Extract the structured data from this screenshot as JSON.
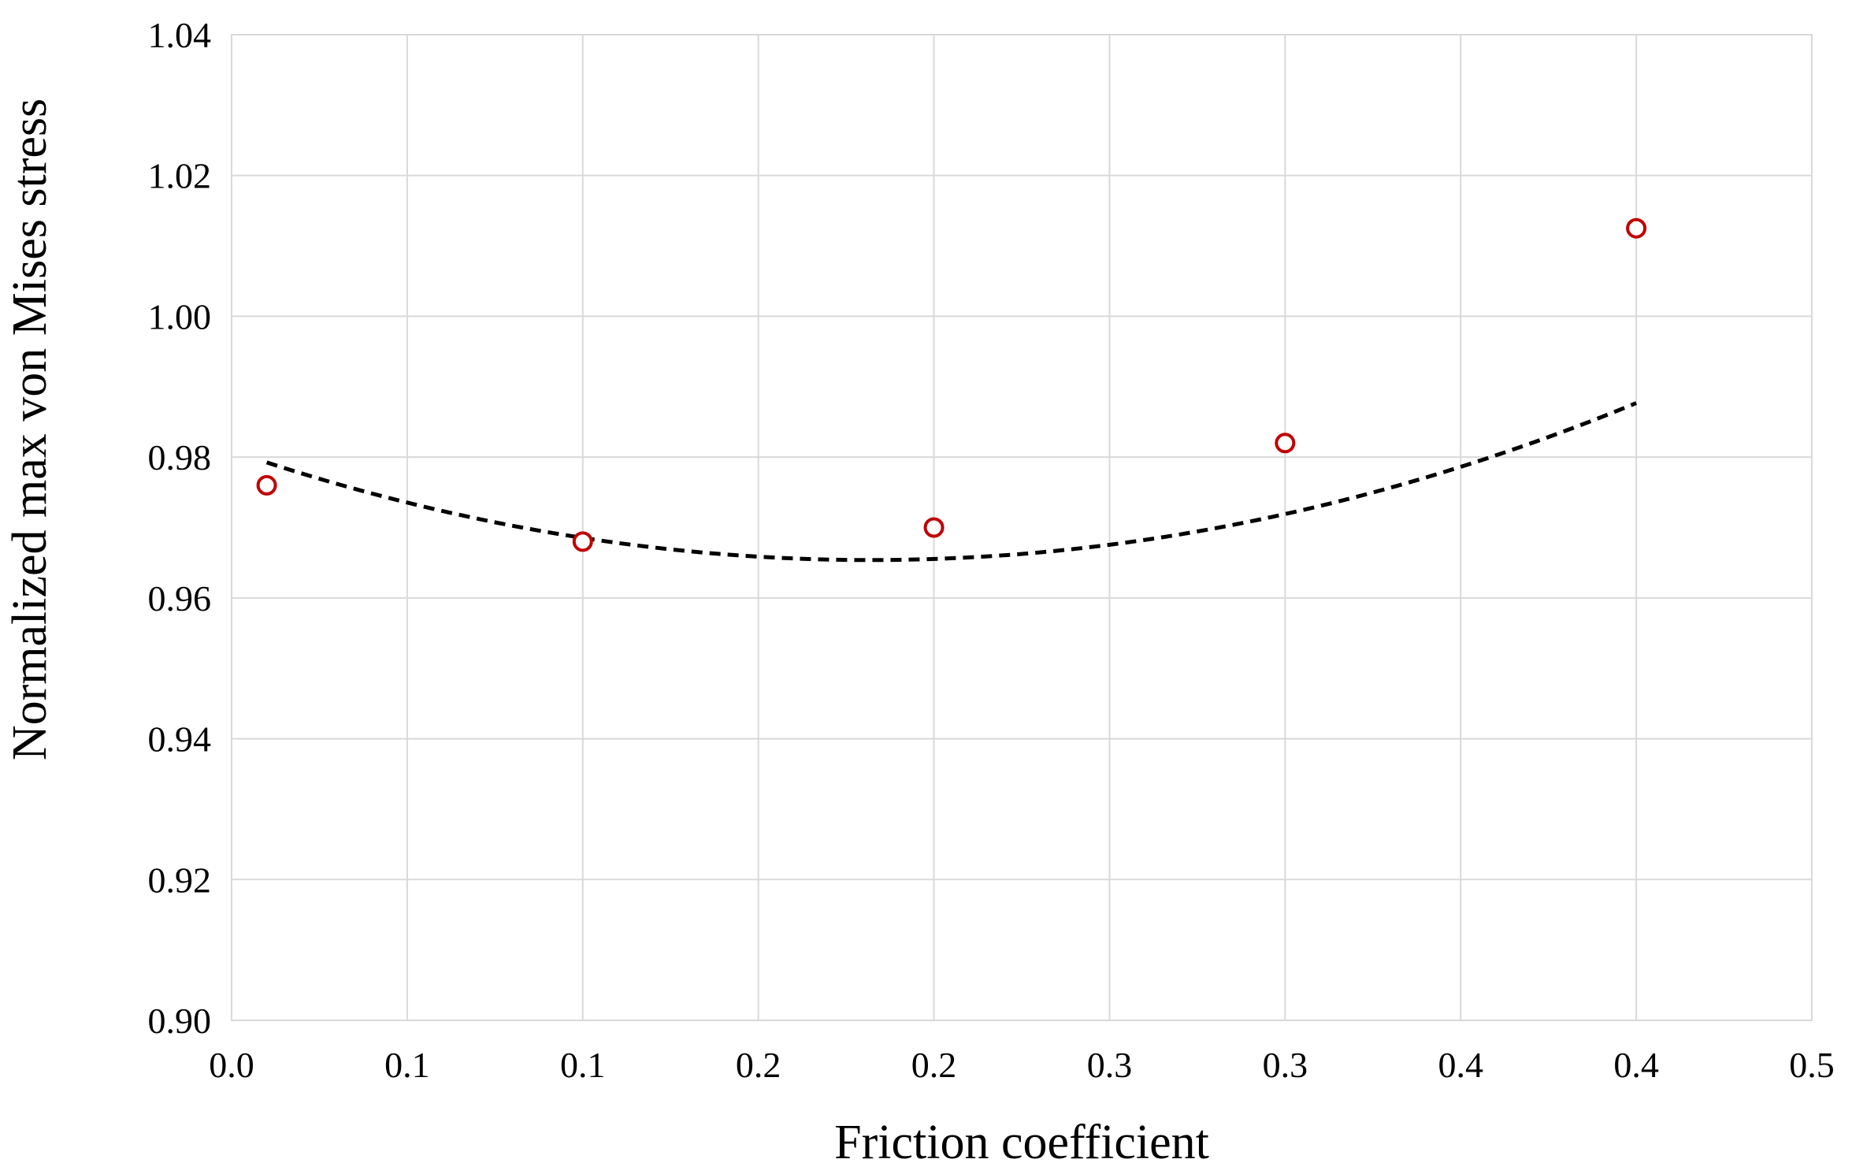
{
  "chart_data": {
    "type": "scatter",
    "title": "",
    "xlabel": "Friction coefficient",
    "ylabel": "Normalized max von Mises stress",
    "xlim": [
      0.0,
      0.45
    ],
    "ylim": [
      0.9,
      1.04
    ],
    "x_tick_labels": [
      "0.0",
      "0.1",
      "0.1",
      "0.2",
      "0.2",
      "0.3",
      "0.3",
      "0.4",
      "0.4",
      "0.5"
    ],
    "y_tick_labels": [
      "0.90",
      "0.92",
      "0.94",
      "0.96",
      "0.98",
      "1.00",
      "1.02",
      "1.04"
    ],
    "grid": true,
    "legend": "none",
    "series": [
      {
        "x": [
          0.01,
          0.1,
          0.2,
          0.3,
          0.4
        ],
        "y": [
          0.976,
          0.968,
          0.97,
          0.982,
          1.0125
        ],
        "marker": "open-circle",
        "color": "#c00000"
      }
    ],
    "trendline": {
      "kind": "polynomial-order-2",
      "style": "dashed",
      "color": "#000000",
      "coefficients": [
        0.9809,
        -0.1706,
        0.4688
      ]
    }
  }
}
